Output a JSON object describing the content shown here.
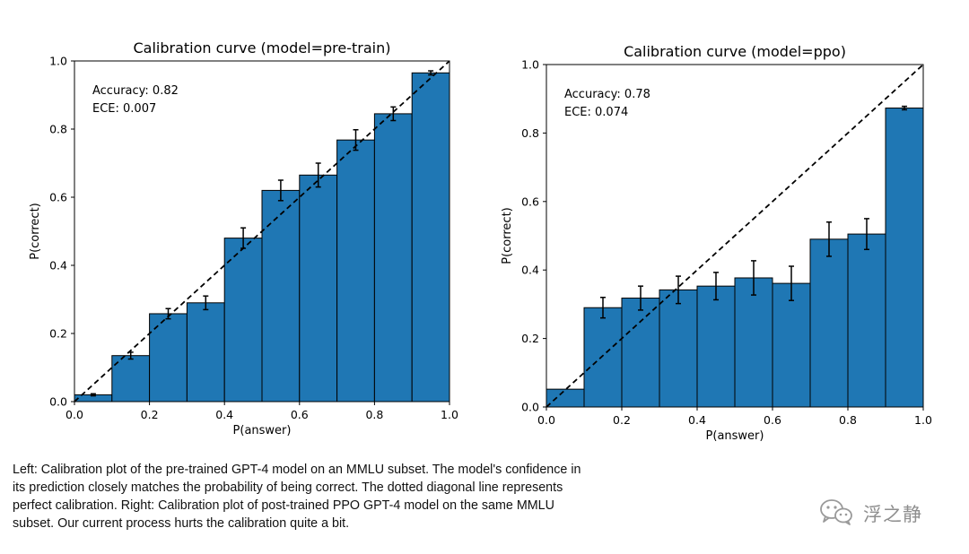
{
  "chart_data": [
    {
      "type": "bar",
      "title": "Calibration curve (model=pre-train)",
      "xlabel": "P(answer)",
      "ylabel": "P(correct)",
      "xlim": [
        0,
        1.0
      ],
      "ylim": [
        0,
        1.0
      ],
      "xticks": [
        "0.0",
        "0.2",
        "0.4",
        "0.6",
        "0.8",
        "1.0"
      ],
      "yticks": [
        "0.0",
        "0.2",
        "0.4",
        "0.6",
        "0.8",
        "1.0"
      ],
      "bins": [
        0.0,
        0.1,
        0.2,
        0.3,
        0.4,
        0.5,
        0.6,
        0.7,
        0.8,
        0.9
      ],
      "bin_width": 0.1,
      "values": [
        0.02,
        0.135,
        0.258,
        0.29,
        0.48,
        0.62,
        0.665,
        0.768,
        0.845,
        0.965
      ],
      "errors": [
        0.003,
        0.01,
        0.015,
        0.02,
        0.03,
        0.03,
        0.035,
        0.03,
        0.02,
        0.006
      ],
      "annotations": [
        "Accuracy: 0.82",
        "ECE: 0.007"
      ],
      "bar_color": "#1f77b4",
      "diagonal": "dashed"
    },
    {
      "type": "bar",
      "title": "Calibration curve (model=ppo)",
      "xlabel": "P(answer)",
      "ylabel": "P(correct)",
      "xlim": [
        0,
        1.0
      ],
      "ylim": [
        0,
        1.0
      ],
      "xticks": [
        "0.0",
        "0.2",
        "0.4",
        "0.6",
        "0.8",
        "1.0"
      ],
      "yticks": [
        "0.0",
        "0.2",
        "0.4",
        "0.6",
        "0.8",
        "1.0"
      ],
      "bins": [
        0.0,
        0.1,
        0.2,
        0.3,
        0.4,
        0.5,
        0.6,
        0.7,
        0.8,
        0.9
      ],
      "bin_width": 0.1,
      "values": [
        0.052,
        0.29,
        0.318,
        0.342,
        0.353,
        0.377,
        0.361,
        0.49,
        0.505,
        0.873
      ],
      "errors": [
        0.0,
        0.03,
        0.035,
        0.04,
        0.04,
        0.05,
        0.05,
        0.05,
        0.045,
        0.005
      ],
      "annotations": [
        "Accuracy: 0.78",
        "ECE: 0.074"
      ],
      "bar_color": "#1f77b4",
      "diagonal": "dashed"
    }
  ],
  "caption": "Left: Calibration plot of the pre-trained GPT-4 model on an MMLU subset. The model's confidence in its prediction closely matches the probability of being correct. The dotted diagonal line represents perfect calibration. Right: Calibration plot of post-trained PPO GPT-4 model on the same MMLU subset. Our current process hurts the calibration quite a bit.",
  "watermark": {
    "icon": "wechat-icon",
    "text": "浮之静"
  }
}
